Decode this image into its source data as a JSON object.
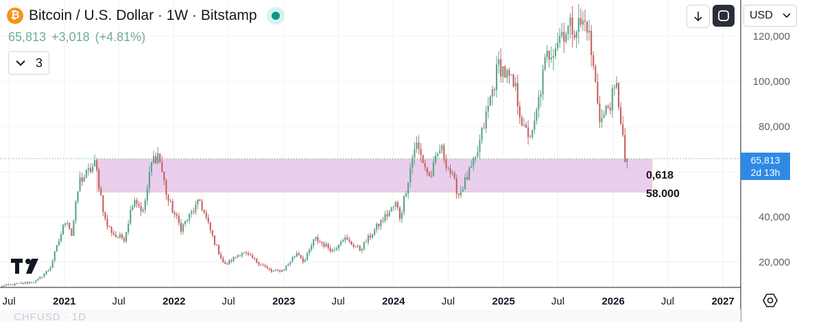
{
  "header": {
    "symbol_title": "Bitcoin / U.S. Dollar · 1W · Bitstamp",
    "symbol_icon": "bitcoin-icon",
    "last_price": "65,813",
    "change_abs": "+3,018",
    "change_pct": "(+4.81%)",
    "indicators_count": "3"
  },
  "toolbar": {
    "currency": "USD",
    "download_icon": "arrow-down-icon",
    "fullscreen_icon": "fullscreen-icon"
  },
  "price_axis": {
    "ticks": [
      "120,000",
      "100,000",
      "80,000",
      "40,000",
      "20,000"
    ],
    "current_price": "65,813",
    "countdown": "2d 13h"
  },
  "time_axis": {
    "labels": [
      "Jul",
      "2021",
      "Jul",
      "2022",
      "Jul",
      "2023",
      "Jul",
      "2024",
      "Jul",
      "2025",
      "Jul",
      "2026",
      "Jul",
      "2027"
    ]
  },
  "zone": {
    "label_1": "0,618",
    "label_2": "58.000",
    "color": "#e1bee7"
  },
  "bottom_text": "CHFUSD · 1D",
  "colors": {
    "up": "#5aa38a",
    "down": "#c8615f",
    "price_line": "#2f8ae5",
    "accent": "#089981"
  },
  "chart_data": {
    "type": "candlestick",
    "title": "Bitcoin / U.S. Dollar · 1W · Bitstamp",
    "ylim": [
      5000,
      130000
    ],
    "x_range": [
      "2020-06-01",
      "2027-03-01"
    ],
    "grid": true,
    "current_price": 65813,
    "zone": {
      "from": 51000,
      "to": 65500,
      "x_start": "2021-04-19",
      "x_end": "2026-05-10"
    },
    "path": [
      [
        "2020-06-01",
        9300
      ],
      [
        "2020-10-01",
        11500
      ],
      [
        "2020-11-15",
        17500
      ],
      [
        "2021-01-08",
        40000
      ],
      [
        "2021-01-25",
        32000
      ],
      [
        "2021-02-20",
        56000
      ],
      [
        "2021-03-10",
        58000
      ],
      [
        "2021-04-14",
        63500
      ],
      [
        "2021-05-19",
        37000
      ],
      [
        "2021-06-20",
        31500
      ],
      [
        "2021-07-20",
        30500
      ],
      [
        "2021-08-20",
        49000
      ],
      [
        "2021-09-20",
        42000
      ],
      [
        "2021-10-20",
        65000
      ],
      [
        "2021-11-10",
        68000
      ],
      [
        "2021-12-10",
        48000
      ],
      [
        "2022-01-24",
        35000
      ],
      [
        "2022-03-28",
        47000
      ],
      [
        "2022-05-15",
        29000
      ],
      [
        "2022-06-18",
        18500
      ],
      [
        "2022-08-14",
        24500
      ],
      [
        "2022-10-15",
        19300
      ],
      [
        "2022-11-21",
        15800
      ],
      [
        "2022-12-31",
        16500
      ],
      [
        "2023-02-15",
        24500
      ],
      [
        "2023-03-10",
        20000
      ],
      [
        "2023-04-14",
        30500
      ],
      [
        "2023-06-15",
        25000
      ],
      [
        "2023-07-15",
        31000
      ],
      [
        "2023-09-11",
        25500
      ],
      [
        "2023-11-15",
        37000
      ],
      [
        "2024-01-10",
        46000
      ],
      [
        "2024-01-23",
        39500
      ],
      [
        "2024-03-14",
        73000
      ],
      [
        "2024-05-01",
        57000
      ],
      [
        "2024-06-05",
        71000
      ],
      [
        "2024-08-05",
        50000
      ],
      [
        "2024-09-30",
        65000
      ],
      [
        "2024-11-12",
        89000
      ],
      [
        "2024-12-17",
        108000
      ],
      [
        "2025-02-10",
        96000
      ],
      [
        "2025-03-10",
        78000
      ],
      [
        "2025-04-08",
        76000
      ],
      [
        "2025-05-22",
        110000
      ],
      [
        "2025-07-14",
        122000
      ],
      [
        "2025-08-14",
        124000
      ],
      [
        "2025-10-06",
        126000
      ],
      [
        "2025-11-20",
        82000
      ],
      [
        "2026-01-13",
        97000
      ],
      [
        "2026-02-01",
        77000
      ],
      [
        "2026-02-10",
        60000
      ],
      [
        "2026-02-18",
        65813
      ]
    ]
  }
}
